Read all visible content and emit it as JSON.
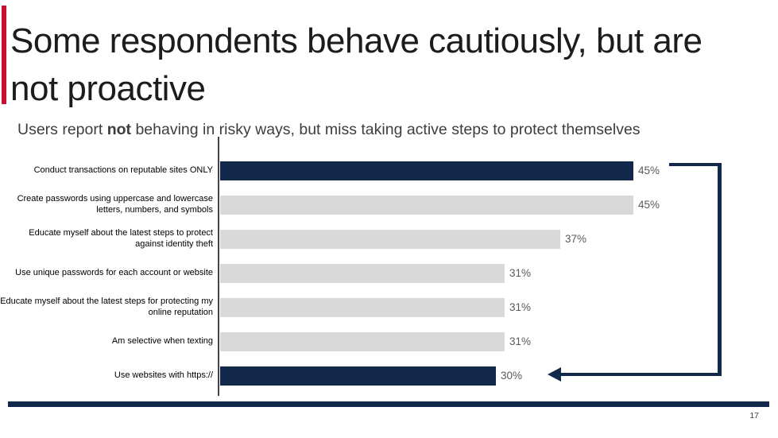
{
  "slide": {
    "title": "Some respondents behave cautiously, but are not proactive",
    "subtitle_pre": "Users report ",
    "subtitle_bold": "not",
    "subtitle_post": " behaving in risky ways, but miss taking active steps to protect themselves",
    "page_number": "17"
  },
  "colors": {
    "accent_red": "#C8102E",
    "navy": "#13294B",
    "bar_gray": "#D9D9D9",
    "value_label_gray": "#595959",
    "axis_gray": "#454545"
  },
  "chart_data": {
    "type": "bar",
    "orientation": "horizontal",
    "unit": "%",
    "xlim": [
      0,
      50
    ],
    "axis_line": true,
    "grid": false,
    "legend": false,
    "categories": [
      "Conduct transactions on reputable sites ONLY",
      "Create passwords using uppercase and lowercase letters, numbers, and symbols",
      "Educate myself about the latest steps to protect against identity theft",
      "Use unique passwords for each account or website",
      "Educate myself about the latest steps for protecting my online reputation",
      "Am selective when texting",
      "Use websites with https://"
    ],
    "values": [
      45,
      45,
      37,
      31,
      31,
      31,
      30
    ],
    "value_labels": [
      "45%",
      "45%",
      "37%",
      "31%",
      "31%",
      "31%",
      "30%"
    ],
    "highlighted": [
      true,
      false,
      false,
      false,
      false,
      false,
      true
    ],
    "annotation": "navy bracket arrow linking the top 45% bar down to the bottom 30% bar"
  }
}
